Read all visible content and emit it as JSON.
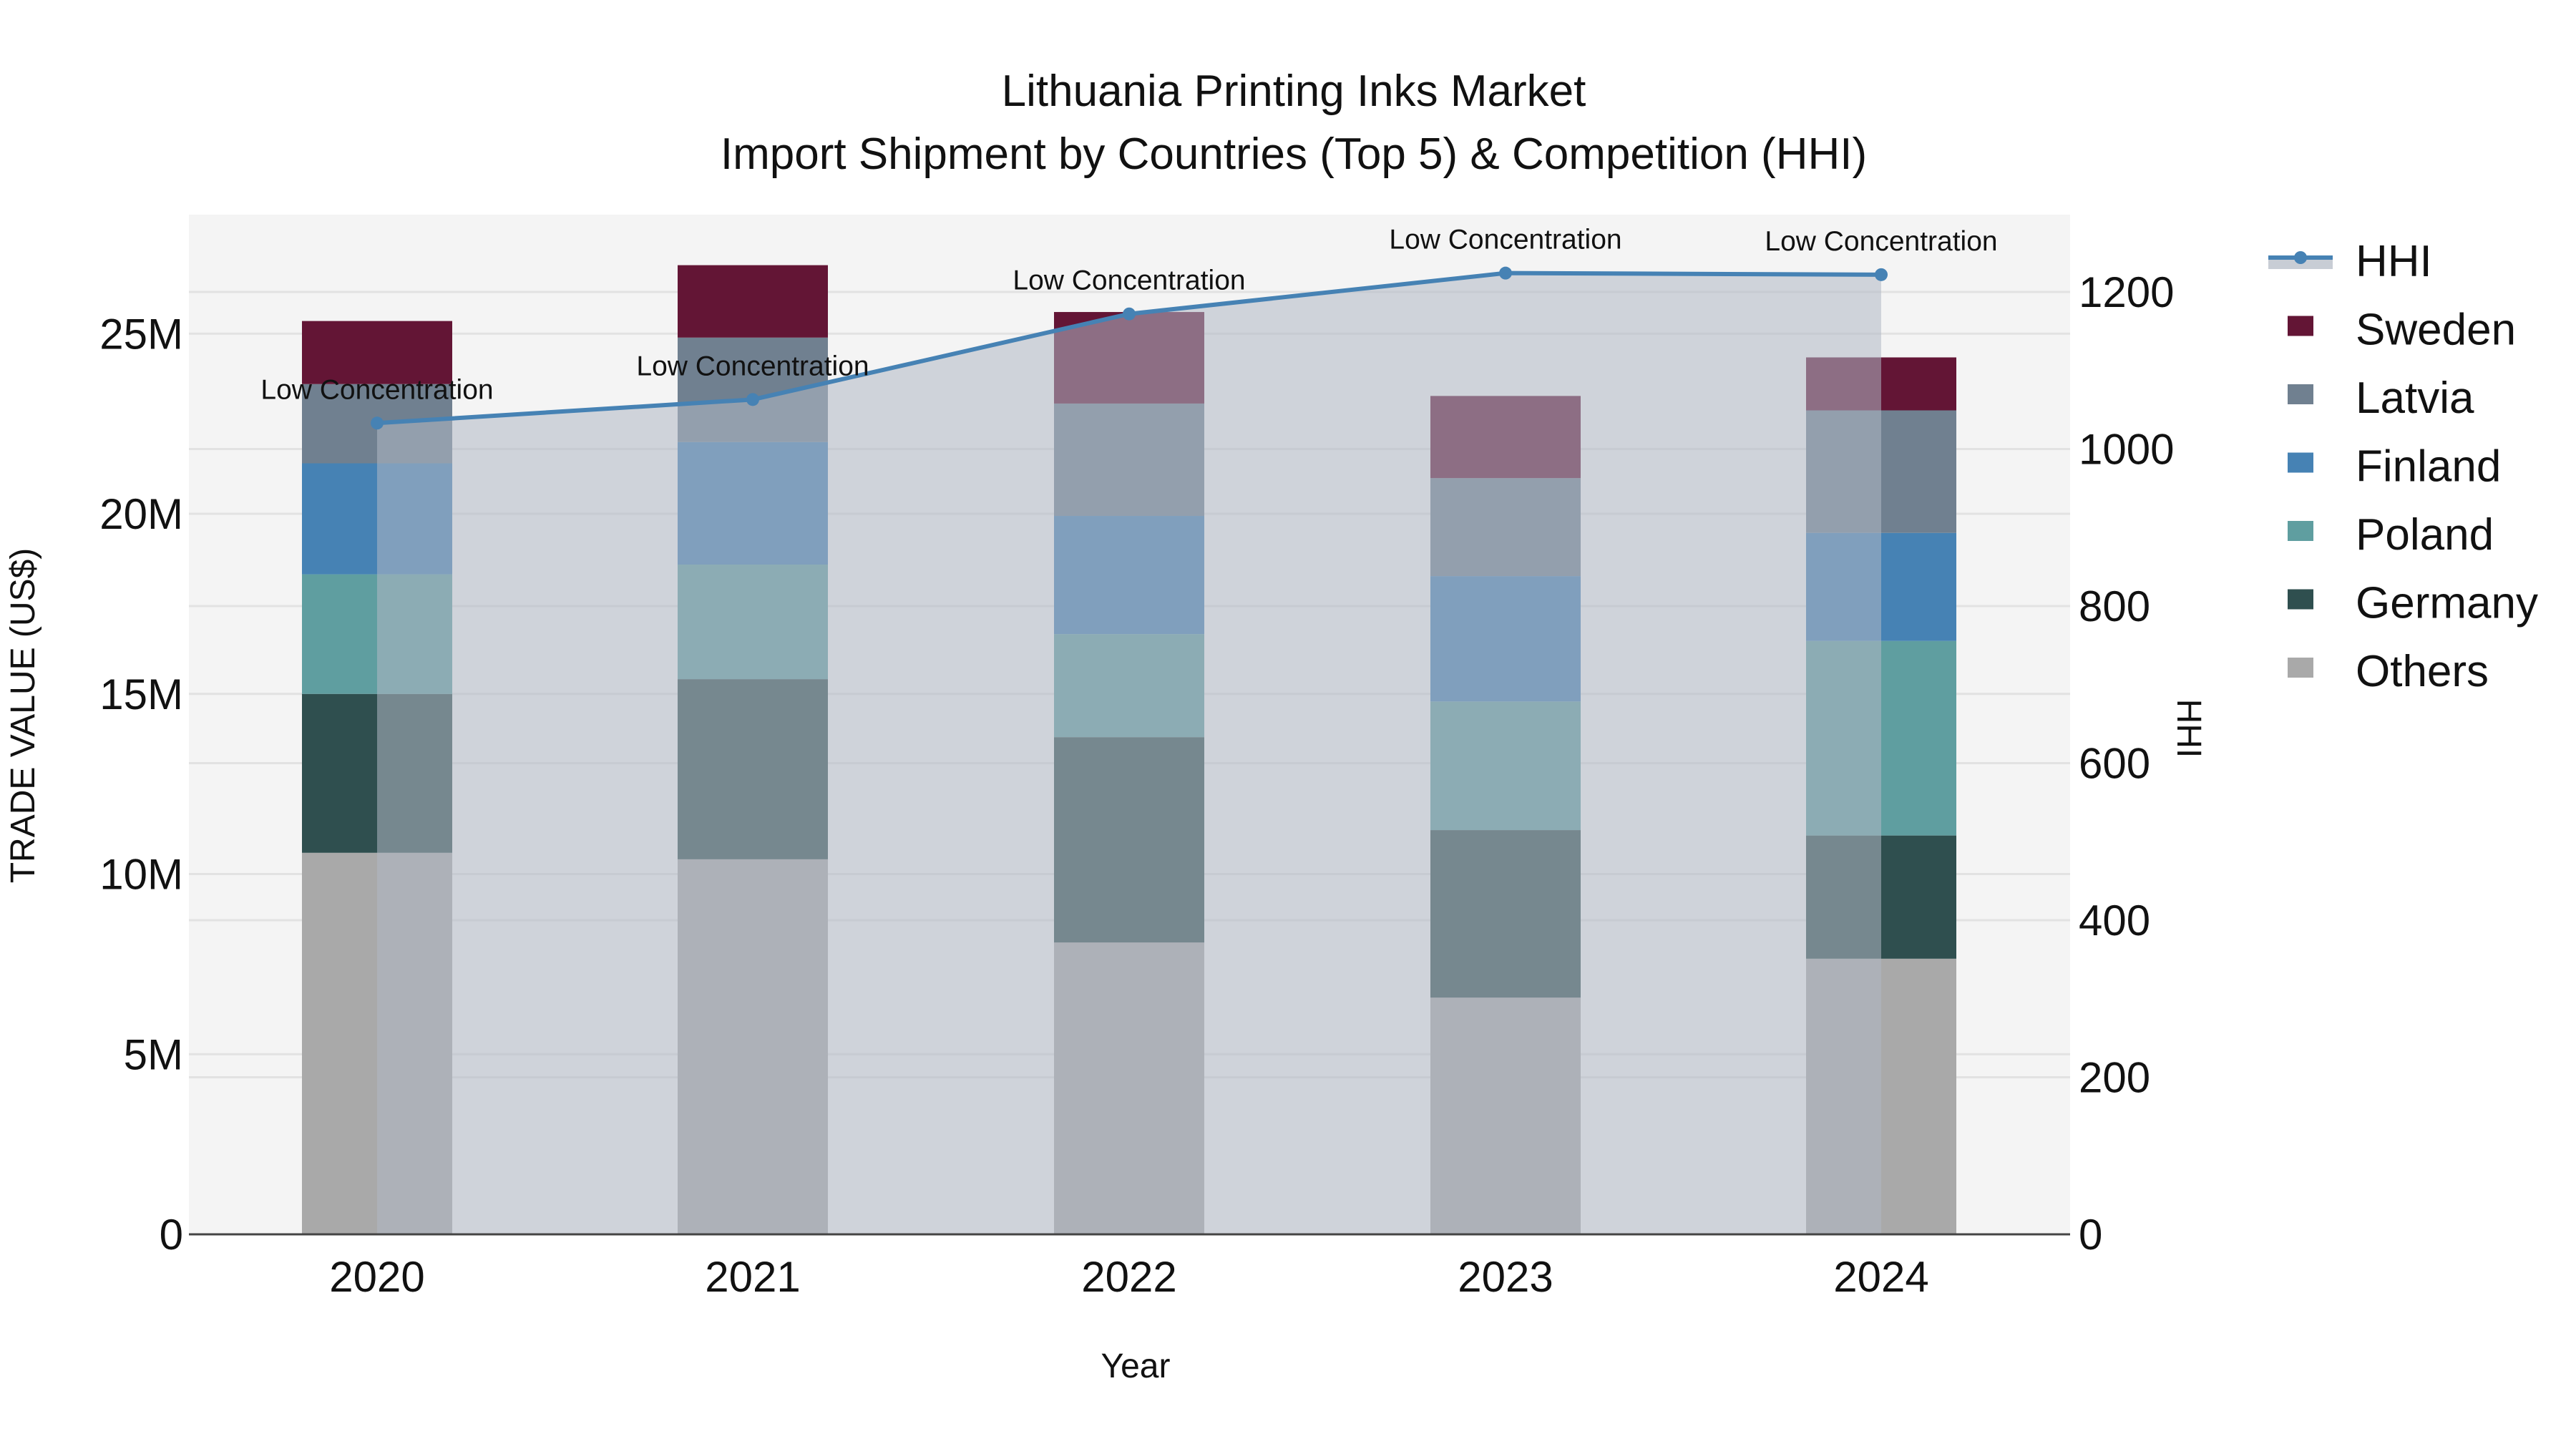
{
  "title": {
    "line1": "Lithuania Printing Inks Market",
    "line2": "Import Shipment by Countries (Top 5) & Competition (HHI)"
  },
  "axes": {
    "x_title": "Year",
    "y_left_title": "TRADE VALUE (US$)",
    "y_right_title": "HHI",
    "y_left_ticks": [
      {
        "value": 0,
        "label": "0"
      },
      {
        "value": 5,
        "label": "5M"
      },
      {
        "value": 10,
        "label": "10M"
      },
      {
        "value": 15,
        "label": "15M"
      },
      {
        "value": 20,
        "label": "20M"
      },
      {
        "value": 25,
        "label": "25M"
      }
    ],
    "y_right_ticks": [
      {
        "value": 0,
        "label": "0"
      },
      {
        "value": 200,
        "label": "200"
      },
      {
        "value": 400,
        "label": "400"
      },
      {
        "value": 600,
        "label": "600"
      },
      {
        "value": 800,
        "label": "800"
      },
      {
        "value": 1000,
        "label": "1000"
      },
      {
        "value": 1200,
        "label": "1200"
      }
    ]
  },
  "legend": [
    {
      "name": "HHI",
      "type": "line",
      "color": "#4682B4",
      "fill": "#C8CDD5"
    },
    {
      "name": "Sweden",
      "type": "bar",
      "color": "#631535"
    },
    {
      "name": "Latvia",
      "type": "bar",
      "color": "#708090"
    },
    {
      "name": "Finland",
      "type": "bar",
      "color": "#4682B4"
    },
    {
      "name": "Poland",
      "type": "bar",
      "color": "#5F9EA0"
    },
    {
      "name": "Germany",
      "type": "bar",
      "color": "#2F4F4F"
    },
    {
      "name": "Others",
      "type": "bar",
      "color": "#A9A9A9"
    }
  ],
  "chart_data": {
    "type": "bar",
    "stacked": true,
    "title": "Lithuania Printing Inks Market — Import Shipment by Countries (Top 5) & Competition (HHI)",
    "xlabel": "Year",
    "ylabel": "TRADE VALUE (US$)",
    "ylabel_right": "HHI",
    "ylim": [
      0,
      28.3
    ],
    "ylim_right": [
      0,
      1298
    ],
    "y_unit": "M USD",
    "grid": true,
    "legend_position": "right",
    "categories": [
      "2020",
      "2021",
      "2022",
      "2023",
      "2024"
    ],
    "series": [
      {
        "name": "Others",
        "color": "#A9A9A9",
        "values": [
          10.59,
          10.41,
          8.1,
          6.57,
          7.65
        ]
      },
      {
        "name": "Germany",
        "color": "#2F4F4F",
        "values": [
          4.41,
          5.0,
          5.7,
          4.65,
          3.42
        ]
      },
      {
        "name": "Poland",
        "color": "#5F9EA0",
        "values": [
          3.32,
          3.18,
          2.86,
          3.57,
          5.4
        ]
      },
      {
        "name": "Finland",
        "color": "#4682B4",
        "values": [
          3.08,
          3.4,
          3.28,
          3.48,
          3.0
        ]
      },
      {
        "name": "Latvia",
        "color": "#708090",
        "values": [
          2.2,
          2.9,
          3.12,
          2.72,
          3.4
        ]
      },
      {
        "name": "Sweden",
        "color": "#631535",
        "values": [
          1.75,
          2.01,
          2.54,
          2.28,
          1.47
        ]
      }
    ],
    "line_series": {
      "name": "HHI",
      "axis": "right",
      "color": "#4682B4",
      "values": [
        1033,
        1063,
        1172,
        1224,
        1222
      ],
      "annotations": [
        "Low Concentration",
        "Low Concentration",
        "Low Concentration",
        "Low Concentration",
        "Low Concentration"
      ]
    }
  }
}
